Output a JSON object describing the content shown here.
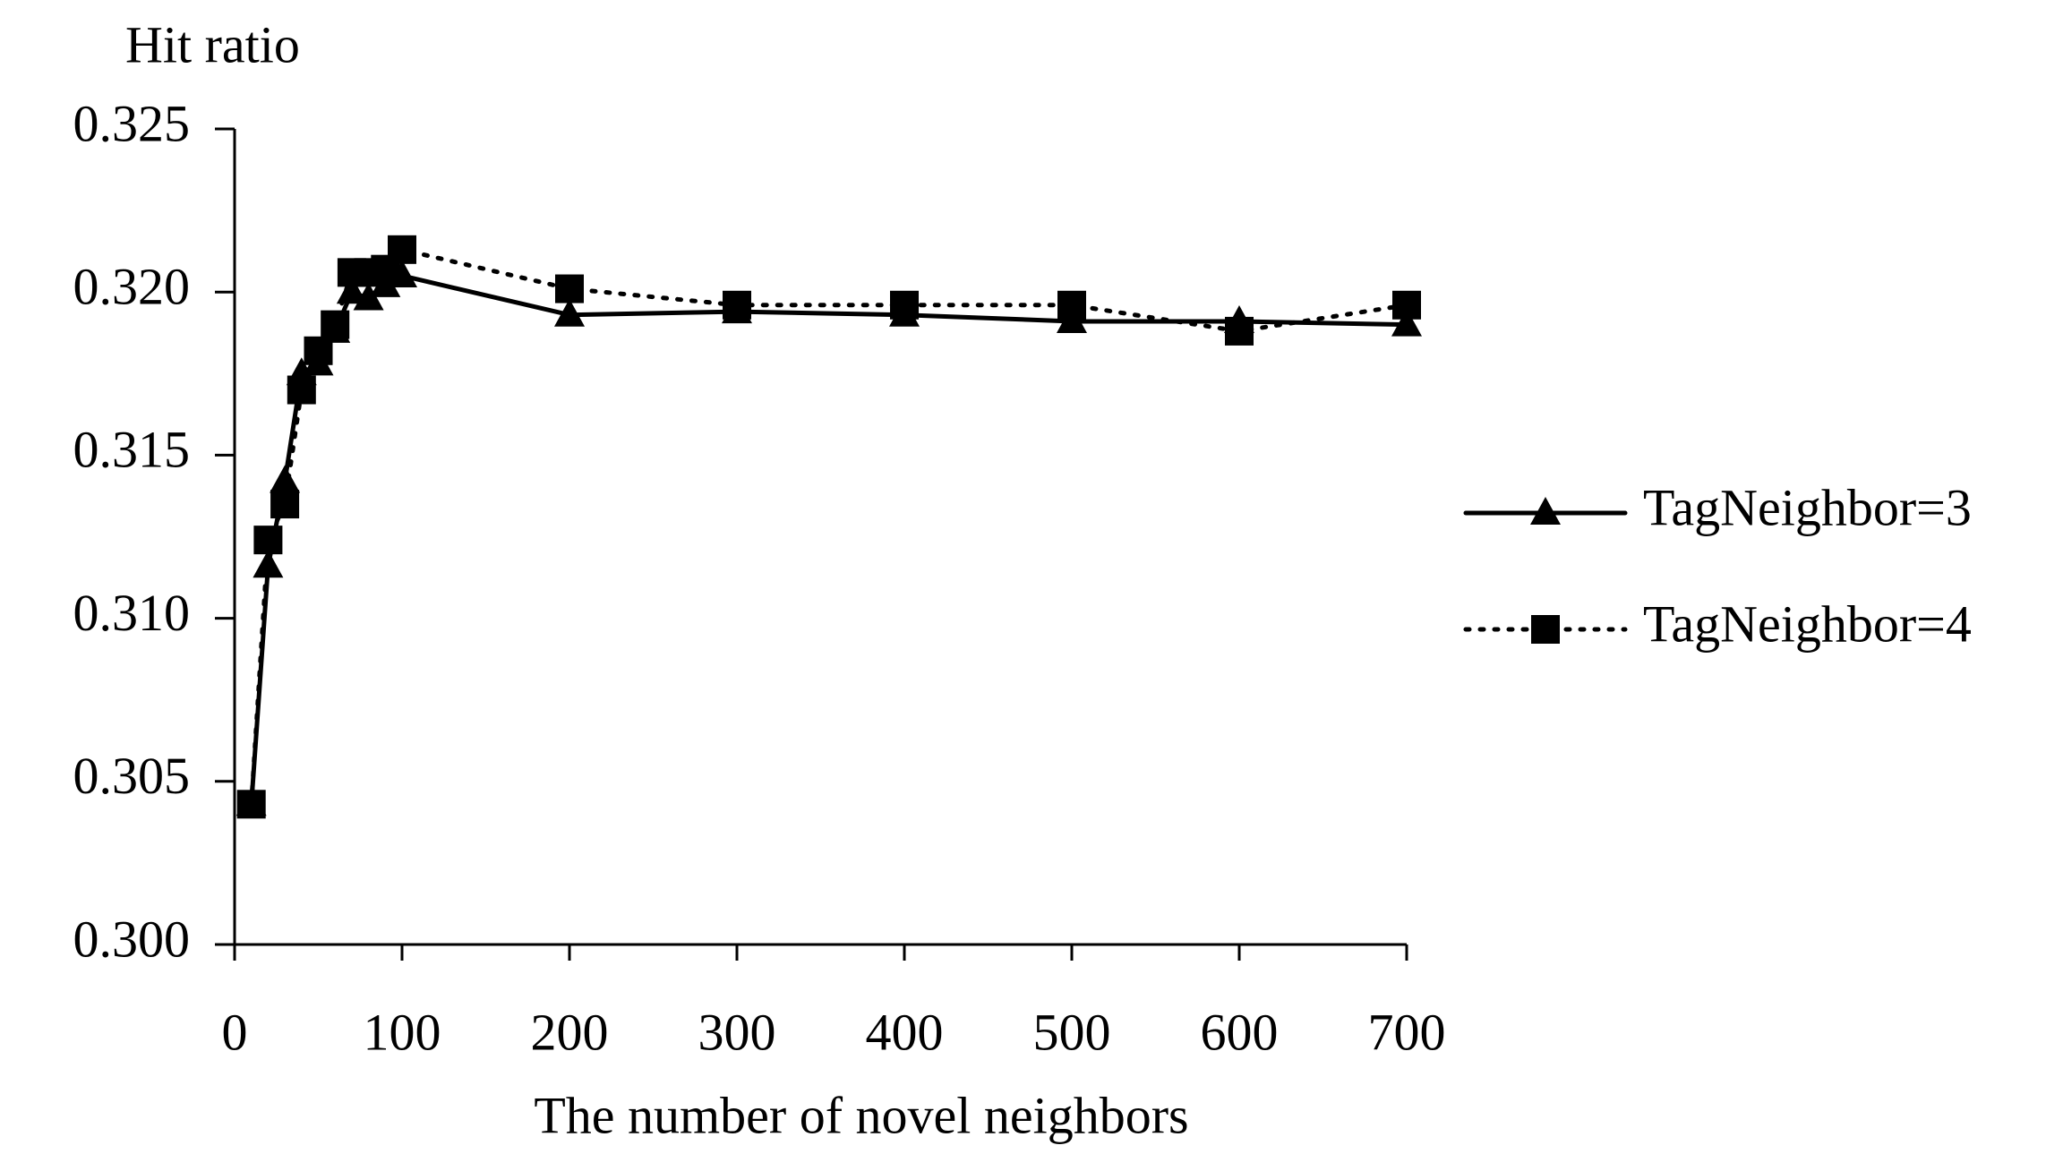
{
  "chart_data": {
    "type": "line",
    "y_axis_label": "Hit ratio",
    "x_axis_label": "The number of novel neighbors",
    "x": [
      10,
      20,
      30,
      40,
      50,
      60,
      70,
      80,
      90,
      100,
      200,
      300,
      400,
      500,
      600,
      700
    ],
    "series": [
      {
        "name": "TagNeighbor=3",
        "color": "#000000",
        "line": "solid",
        "marker": "triangle",
        "values": [
          0.3043,
          0.3116,
          0.3142,
          0.3175,
          0.3178,
          0.3188,
          0.32,
          0.3198,
          0.3202,
          0.3205,
          0.3193,
          0.3194,
          0.3193,
          0.3191,
          0.3191,
          0.319
        ]
      },
      {
        "name": "TagNeighbor=4",
        "color": "#000000",
        "line": "dotted",
        "marker": "square",
        "values": [
          0.3043,
          0.3124,
          0.3135,
          0.317,
          0.3182,
          0.319,
          0.3206,
          0.3206,
          0.3207,
          0.3213,
          0.3201,
          0.3196,
          0.3196,
          0.3196,
          0.3188,
          0.3196
        ]
      }
    ],
    "xlim": [
      0,
      700
    ],
    "xticks": [
      0,
      100,
      200,
      300,
      400,
      500,
      600,
      700
    ],
    "ylim": [
      0.3,
      0.325
    ],
    "yticks": [
      {
        "value": 0.3,
        "label": "0.300"
      },
      0.305,
      {
        "value": 0.31,
        "label": "0.310"
      },
      0.315,
      {
        "value": 0.32,
        "label": "0.320"
      },
      0.325
    ],
    "grid": false,
    "legend": "right"
  }
}
